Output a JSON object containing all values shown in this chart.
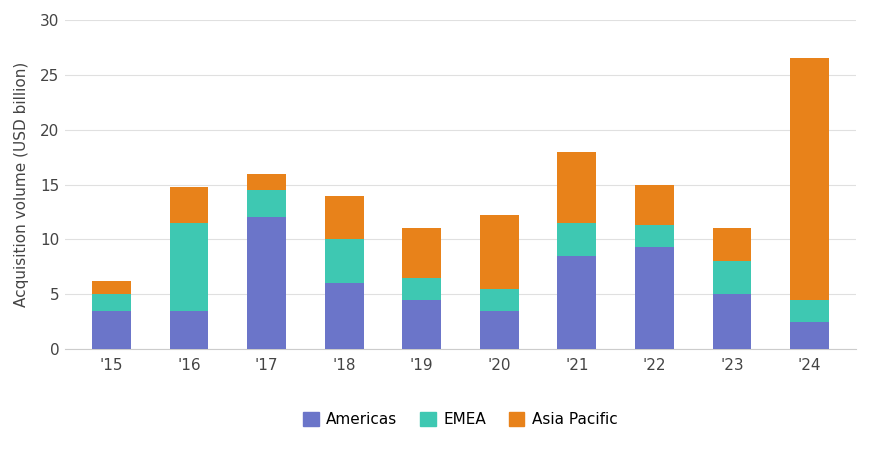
{
  "years": [
    "'15",
    "'16",
    "'17",
    "'18",
    "'19",
    "'20",
    "'21",
    "'22",
    "'23",
    "'24"
  ],
  "americas": [
    3.5,
    3.5,
    12.0,
    6.0,
    4.5,
    3.5,
    8.5,
    9.3,
    5.0,
    2.5
  ],
  "emea": [
    1.5,
    8.0,
    2.5,
    4.0,
    2.0,
    2.0,
    3.0,
    2.0,
    3.0,
    2.0
  ],
  "asia_pacific": [
    1.2,
    3.3,
    1.5,
    4.0,
    4.5,
    6.7,
    6.5,
    3.7,
    3.0,
    22.0
  ],
  "color_americas": "#6B75C9",
  "color_emea": "#3EC8B2",
  "color_asia_pacific": "#E8821A",
  "ylabel": "Acquisition volume (USD billion)",
  "ylim": [
    0,
    30
  ],
  "yticks": [
    0,
    5,
    10,
    15,
    20,
    25,
    30
  ],
  "legend_labels": [
    "Americas",
    "EMEA",
    "Asia Pacific"
  ],
  "bg_color": "#ffffff",
  "grid_color": "#e0e0e0",
  "bar_width": 0.5
}
